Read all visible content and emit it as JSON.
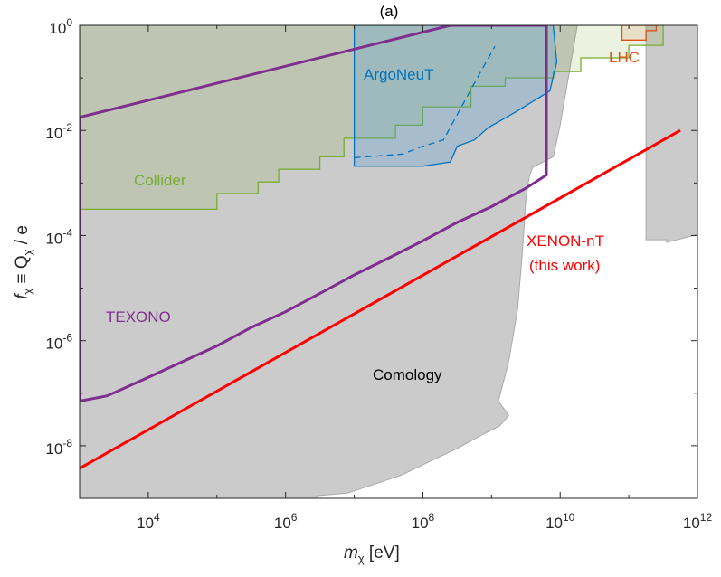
{
  "chart_data": {
    "type": "line",
    "title": "(a)",
    "xlabel": "m_χ [eV]",
    "ylabel": "f_χ ≡ Q_χ / e",
    "xscale": "log",
    "yscale": "log",
    "xlim_log10": [
      3.0,
      12.0
    ],
    "ylim_log10": [
      -9.0,
      0.0
    ],
    "x_ticks": [
      {
        "base": "10",
        "exp": "4",
        "log": 4
      },
      {
        "base": "10",
        "exp": "6",
        "log": 6
      },
      {
        "base": "10",
        "exp": "8",
        "log": 8
      },
      {
        "base": "10",
        "exp": "10",
        "log": 10
      },
      {
        "base": "10",
        "exp": "12",
        "log": 12
      }
    ],
    "y_ticks": [
      {
        "base": "10",
        "exp": "0",
        "log": 0
      },
      {
        "base": "10",
        "exp": "-2",
        "log": -2
      },
      {
        "base": "10",
        "exp": "-4",
        "log": -4
      },
      {
        "base": "10",
        "exp": "-6",
        "log": -6
      },
      {
        "base": "10",
        "exp": "-8",
        "log": -8
      }
    ],
    "colors": {
      "cosmology": "#cbcbcb",
      "collider": "#77ac30",
      "argoneut": "#0072bd",
      "lhc": "#d95319",
      "texono": "#7e2f8e",
      "xenon": "#ff0000"
    },
    "series": [
      {
        "name": "Comology",
        "kind": "region",
        "points": [
          [
            3.0,
            -9.0
          ],
          [
            3.0,
            0.0
          ],
          [
            12.0,
            0.0
          ],
          [
            12.0,
            -3.98
          ],
          [
            11.55,
            -4.13
          ],
          [
            11.55,
            -4.08
          ],
          [
            11.25,
            -4.08
          ],
          [
            11.25,
            0.0
          ],
          [
            10.9,
            0.0
          ],
          [
            10.25,
            0.0
          ],
          [
            10.0,
            -1.9
          ],
          [
            9.9,
            -2.5
          ],
          [
            9.6,
            -2.7
          ],
          [
            9.55,
            -2.88
          ],
          [
            9.5,
            -3.3
          ],
          [
            9.45,
            -4.3
          ],
          [
            9.38,
            -5.4
          ],
          [
            9.25,
            -6.4
          ],
          [
            9.1,
            -7.15
          ],
          [
            9.25,
            -7.42
          ],
          [
            9.12,
            -7.62
          ],
          [
            8.85,
            -7.8
          ],
          [
            8.5,
            -8.05
          ],
          [
            8.1,
            -8.3
          ],
          [
            7.7,
            -8.55
          ],
          [
            7.3,
            -8.73
          ],
          [
            6.9,
            -8.9
          ],
          [
            6.45,
            -8.95
          ],
          [
            6.45,
            -9.0
          ]
        ]
      },
      {
        "name": "Collider",
        "kind": "step-region",
        "points": [
          [
            3.0,
            -3.5
          ],
          [
            5.0,
            -3.5
          ],
          [
            5.0,
            -3.2
          ],
          [
            5.6,
            -3.2
          ],
          [
            5.6,
            -2.98
          ],
          [
            5.9,
            -2.98
          ],
          [
            5.9,
            -2.74
          ],
          [
            6.5,
            -2.74
          ],
          [
            6.5,
            -2.5
          ],
          [
            6.85,
            -2.5
          ],
          [
            6.85,
            -2.15
          ],
          [
            7.6,
            -2.15
          ],
          [
            7.6,
            -1.9
          ],
          [
            8.0,
            -1.9
          ],
          [
            8.0,
            -1.55
          ],
          [
            8.7,
            -1.55
          ],
          [
            8.7,
            -1.16
          ],
          [
            9.2,
            -1.16
          ],
          [
            9.2,
            -1.0
          ],
          [
            9.9,
            -1.0
          ],
          [
            9.9,
            -0.88
          ],
          [
            10.3,
            -0.88
          ],
          [
            10.3,
            -0.62
          ],
          [
            11.0,
            -0.62
          ],
          [
            11.0,
            -0.38
          ],
          [
            11.5,
            -0.38
          ],
          [
            11.5,
            0.0
          ],
          [
            3.0,
            0.0
          ]
        ]
      },
      {
        "name": "ArgoNeuT",
        "kind": "region",
        "points": [
          [
            7.0,
            0.0
          ],
          [
            7.0,
            -2.68
          ],
          [
            8.0,
            -2.68
          ],
          [
            8.4,
            -2.6
          ],
          [
            8.5,
            -2.3
          ],
          [
            8.75,
            -2.18
          ],
          [
            8.95,
            -1.95
          ],
          [
            9.35,
            -1.65
          ],
          [
            9.85,
            -1.25
          ],
          [
            9.95,
            -0.7
          ],
          [
            9.9,
            0.0
          ]
        ],
        "dashed": [
          [
            7.0,
            -2.52
          ],
          [
            7.7,
            -2.45
          ],
          [
            8.0,
            -2.3
          ],
          [
            8.3,
            -2.18
          ],
          [
            8.5,
            -1.7
          ],
          [
            8.75,
            -1.1
          ],
          [
            9.05,
            -0.4
          ]
        ]
      },
      {
        "name": "LHC",
        "kind": "step-region",
        "points": [
          [
            10.9,
            0.0
          ],
          [
            10.9,
            -0.28
          ],
          [
            11.25,
            -0.28
          ],
          [
            11.25,
            -0.1
          ],
          [
            11.4,
            -0.1
          ],
          [
            11.4,
            0.0
          ]
        ]
      },
      {
        "name": "TEXONO",
        "kind": "line",
        "points": [
          [
            3.0,
            -7.15
          ],
          [
            3.4,
            -7.05
          ],
          [
            4.0,
            -6.7
          ],
          [
            4.5,
            -6.4
          ],
          [
            5.0,
            -6.1
          ],
          [
            5.5,
            -5.75
          ],
          [
            6.0,
            -5.45
          ],
          [
            6.5,
            -5.1
          ],
          [
            7.0,
            -4.75
          ],
          [
            7.5,
            -4.43
          ],
          [
            8.0,
            -4.1
          ],
          [
            8.5,
            -3.75
          ],
          [
            9.0,
            -3.45
          ],
          [
            9.5,
            -3.1
          ],
          [
            9.8,
            -2.85
          ],
          [
            9.8,
            0.0
          ],
          [
            8.4,
            0.0
          ],
          [
            3.0,
            -1.75
          ],
          [
            3.0,
            -7.15
          ]
        ]
      },
      {
        "name": "XENON-nT",
        "label_line2": "(this work)",
        "kind": "line",
        "points": [
          [
            3.0,
            -8.43
          ],
          [
            11.75,
            -2.0
          ]
        ]
      }
    ],
    "annotations": {
      "argoneut": "ArgoNeuT",
      "collider": "Collider",
      "lhc": "LHC",
      "texono": "TEXONO",
      "xenon_line1": "XENON-nT",
      "xenon_line2": "(this work)",
      "cosmology": "Comology"
    }
  }
}
